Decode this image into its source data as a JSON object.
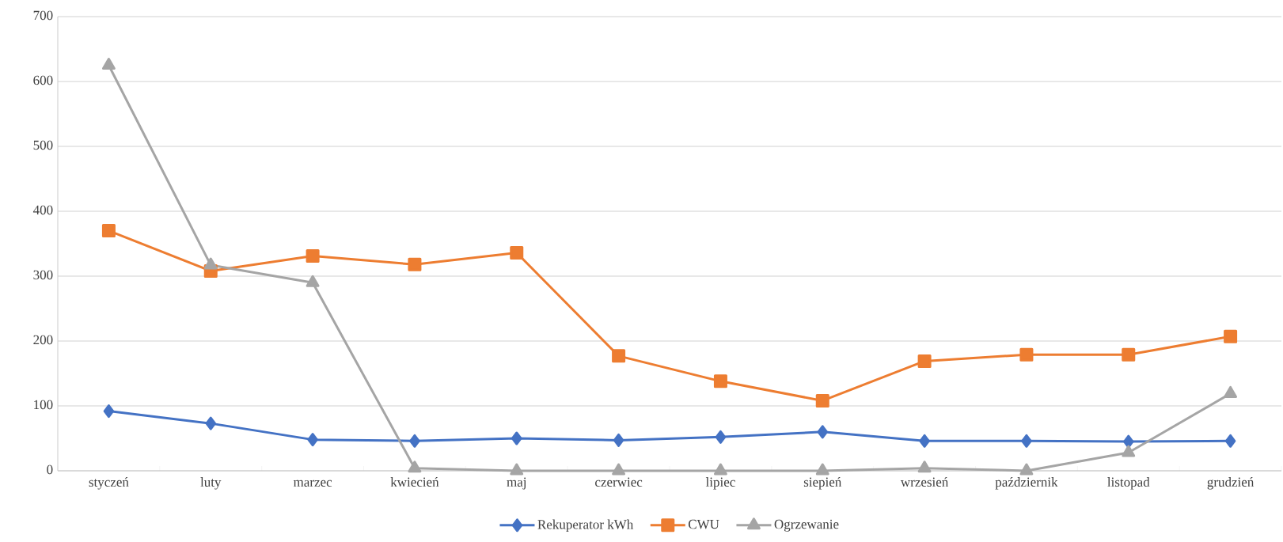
{
  "chart_data": {
    "type": "line",
    "categories": [
      "styczeń",
      "luty",
      "marzec",
      "kwiecień",
      "maj",
      "czerwiec",
      "lipiec",
      "siepień",
      "wrzesień",
      "październik",
      "listopad",
      "grudzień"
    ],
    "series": [
      {
        "name": "Rekuperator kWh",
        "color": "#4472c4",
        "marker": "diamond",
        "values": [
          92,
          73,
          48,
          46,
          50,
          47,
          52,
          60,
          46,
          46,
          45,
          46
        ]
      },
      {
        "name": "CWU",
        "color": "#ed7d31",
        "marker": "square",
        "values": [
          370,
          308,
          331,
          318,
          336,
          177,
          138,
          108,
          169,
          179,
          179,
          207
        ]
      },
      {
        "name": "Ogrzewanie",
        "color": "#a5a5a5",
        "marker": "triangle",
        "values": [
          625,
          317,
          290,
          4,
          0,
          0,
          0,
          0,
          4,
          0,
          28,
          119
        ]
      }
    ],
    "ylim": [
      0,
      700
    ],
    "yticks": [
      0,
      100,
      200,
      300,
      400,
      500,
      600,
      700
    ],
    "grid": "y",
    "legend": "bottom",
    "line_style": "solid"
  }
}
